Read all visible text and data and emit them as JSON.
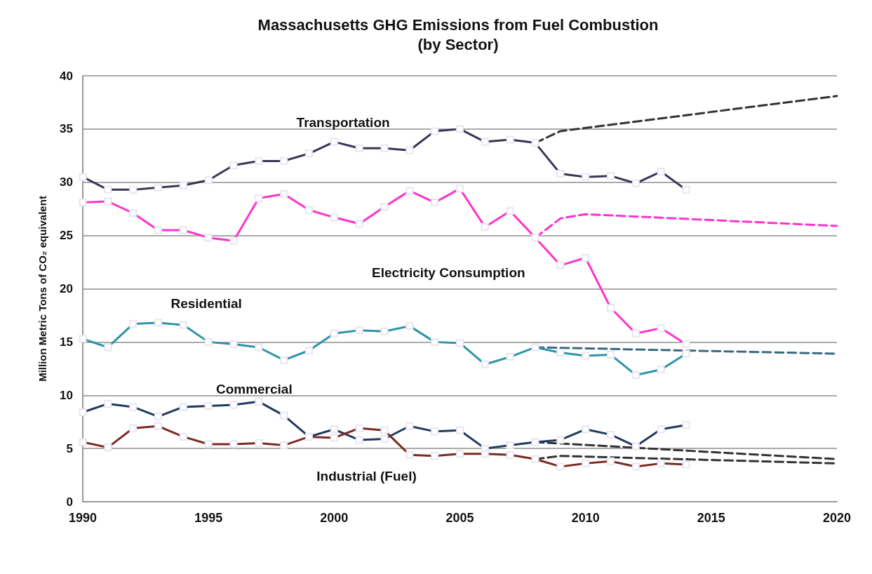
{
  "chart_data": {
    "type": "line",
    "title": "Massachusetts GHG Emissions from Fuel Combustion\n(by Sector)",
    "ylabel": "Million Metric Tons of CO₂ equivalent",
    "x": [
      1990,
      1991,
      1992,
      1993,
      1994,
      1995,
      1996,
      1997,
      1998,
      1999,
      2000,
      2001,
      2002,
      2003,
      2004,
      2005,
      2006,
      2007,
      2008,
      2009,
      2010,
      2011,
      2012,
      2013,
      2014
    ],
    "xlim": [
      1990,
      2020
    ],
    "xticks": [
      1990,
      1995,
      2000,
      2005,
      2010,
      2015,
      2020
    ],
    "ylim": [
      0,
      40
    ],
    "yticks": [
      0,
      5,
      10,
      15,
      20,
      25,
      30,
      35,
      40
    ],
    "grid": "y",
    "legend": false,
    "marker": "square",
    "line_style": "solid",
    "series": [
      {
        "name": "Transportation",
        "color": "#3b3556",
        "values": [
          30.5,
          29.3,
          29.3,
          29.5,
          29.7,
          30.2,
          31.6,
          32.0,
          32.0,
          32.7,
          33.8,
          33.2,
          33.2,
          33.0,
          34.8,
          35.0,
          33.8,
          34.0,
          33.7,
          30.8,
          30.5,
          30.6,
          29.9,
          31.0,
          29.3
        ]
      },
      {
        "name": "Electricity Consumption",
        "color": "#ff33cc",
        "values": [
          28.1,
          28.2,
          27.1,
          25.5,
          25.5,
          24.8,
          24.5,
          28.5,
          28.9,
          27.4,
          26.7,
          26.1,
          27.7,
          29.2,
          28.1,
          29.4,
          25.8,
          27.3,
          24.8,
          22.2,
          22.9,
          18.2,
          15.8,
          16.3,
          14.8
        ]
      },
      {
        "name": "Residential",
        "color": "#2e94a8",
        "values": [
          15.3,
          14.5,
          16.7,
          16.8,
          16.6,
          15.0,
          14.8,
          14.5,
          13.3,
          14.2,
          15.8,
          16.1,
          16.0,
          16.5,
          15.0,
          14.9,
          12.9,
          13.6,
          14.5,
          14.0,
          13.7,
          13.8,
          11.9,
          12.4,
          13.9
        ]
      },
      {
        "name": "Commercial",
        "color": "#1f3a5f",
        "values": [
          8.4,
          9.2,
          8.9,
          8.0,
          8.9,
          9.0,
          9.1,
          9.4,
          8.1,
          6.1,
          6.8,
          5.8,
          5.9,
          7.1,
          6.6,
          6.7,
          5.0,
          5.3,
          5.6,
          5.8,
          6.8,
          6.3,
          5.2,
          6.8,
          7.2
        ]
      },
      {
        "name": "Industrial (Fuel)",
        "color": "#7a2a22",
        "values": [
          5.6,
          5.1,
          6.9,
          7.1,
          6.1,
          5.4,
          5.4,
          5.5,
          5.3,
          6.1,
          6.0,
          6.9,
          6.7,
          4.4,
          4.3,
          4.5,
          4.5,
          4.4,
          4.0,
          3.3,
          3.6,
          3.8,
          3.3,
          3.6,
          3.5
        ]
      },
      {
        "color": "#333333",
        "marker": "none",
        "line_style": "dashed",
        "x": [
          2008,
          2009,
          2020
        ],
        "values": [
          33.7,
          34.8,
          38.1
        ]
      },
      {
        "color": "#ff33cc",
        "marker": "none",
        "line_style": "dashed",
        "x": [
          2008,
          2009,
          2010,
          2020
        ],
        "values": [
          24.8,
          26.6,
          27.0,
          25.9
        ]
      },
      {
        "color": "#3a6a80",
        "marker": "none",
        "line_style": "dashed",
        "x": [
          2008,
          2020
        ],
        "values": [
          14.5,
          13.9
        ]
      },
      {
        "color": "#333333",
        "marker": "none",
        "line_style": "dashed",
        "x": [
          2008,
          2020
        ],
        "values": [
          5.6,
          4.0
        ]
      },
      {
        "color": "#333333",
        "marker": "none",
        "line_style": "dashed",
        "x": [
          2008,
          2009,
          2020
        ],
        "values": [
          4.0,
          4.3,
          3.6
        ]
      }
    ]
  }
}
